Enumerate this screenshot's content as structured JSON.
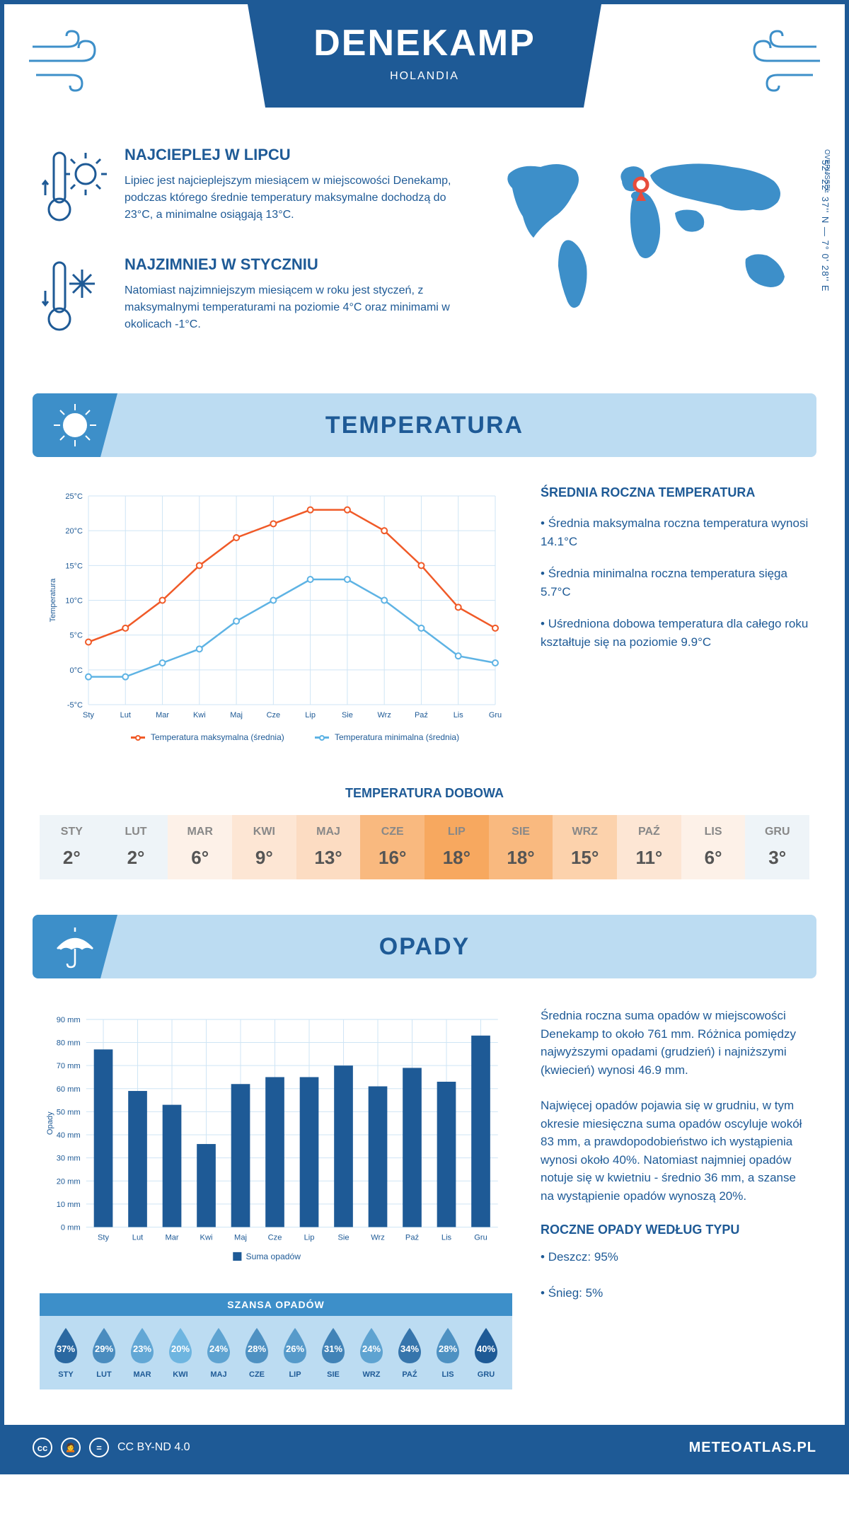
{
  "header": {
    "city": "DENEKAMP",
    "country": "HOLANDIA"
  },
  "coords": "52° 22' 37'' N — 7° 0' 28'' E",
  "region": "OVERIJSSEL",
  "facts": {
    "hot": {
      "title": "NAJCIEPLEJ W LIPCU",
      "body": "Lipiec jest najcieplejszym miesiącem w miejscowości Denekamp, podczas którego średnie temperatury maksymalne dochodzą do 23°C, a minimalne osiągają 13°C."
    },
    "cold": {
      "title": "NAJZIMNIEJ W STYCZNIU",
      "body": "Natomiast najzimniejszym miesiącem w roku jest styczeń, z maksymalnymi temperaturami na poziomie 4°C oraz minimami w okolicach -1°C."
    }
  },
  "sections": {
    "temperature": "TEMPERATURA",
    "precipitation": "OPADY"
  },
  "temp_chart": {
    "type": "line",
    "y_axis_label": "Temperatura",
    "months": [
      "Sty",
      "Lut",
      "Mar",
      "Kwi",
      "Maj",
      "Cze",
      "Lip",
      "Sie",
      "Wrz",
      "Paź",
      "Lis",
      "Gru"
    ],
    "ylim": [
      -5,
      25
    ],
    "ytick_step": 5,
    "ytick_labels": [
      "-5°C",
      "0°C",
      "5°C",
      "10°C",
      "15°C",
      "20°C",
      "25°C"
    ],
    "series": {
      "max": {
        "label": "Temperatura maksymalna (średnia)",
        "color": "#f05a28",
        "values": [
          4,
          6,
          10,
          15,
          19,
          21,
          23,
          23,
          20,
          15,
          9,
          6
        ]
      },
      "min": {
        "label": "Temperatura minimalna (średnia)",
        "color": "#5eb3e4",
        "values": [
          -1,
          -1,
          1,
          3,
          7,
          10,
          13,
          13,
          10,
          6,
          2,
          1
        ]
      }
    },
    "grid_color": "#cfe5f5",
    "background": "#ffffff"
  },
  "temp_summary": {
    "title": "ŚREDNIA ROCZNA TEMPERATURA",
    "bullets": [
      "Średnia maksymalna roczna temperatura wynosi 14.1°C",
      "Średnia minimalna roczna temperatura sięga 5.7°C",
      "Uśredniona dobowa temperatura dla całego roku kształtuje się na poziomie 9.9°C"
    ]
  },
  "daily": {
    "title": "TEMPERATURA DOBOWA",
    "months": [
      "STY",
      "LUT",
      "MAR",
      "KWI",
      "MAJ",
      "CZE",
      "LIP",
      "SIE",
      "WRZ",
      "PAŹ",
      "LIS",
      "GRU"
    ],
    "values": [
      "2°",
      "2°",
      "6°",
      "9°",
      "13°",
      "16°",
      "18°",
      "18°",
      "15°",
      "11°",
      "6°",
      "3°"
    ],
    "bg_colors": [
      "#eef4f8",
      "#eef4f8",
      "#fdf1e8",
      "#fde6d4",
      "#fcdcc2",
      "#f9b97f",
      "#f7a85f",
      "#f9b97f",
      "#fcd2ac",
      "#fde6d4",
      "#fdf1e8",
      "#eef4f8"
    ]
  },
  "precip_chart": {
    "type": "bar",
    "y_axis_label": "Opady",
    "months": [
      "Sty",
      "Lut",
      "Mar",
      "Kwi",
      "Maj",
      "Cze",
      "Lip",
      "Sie",
      "Wrz",
      "Paź",
      "Lis",
      "Gru"
    ],
    "ylim": [
      0,
      90
    ],
    "ytick_step": 10,
    "ytick_labels": [
      "0 mm",
      "10 mm",
      "20 mm",
      "30 mm",
      "40 mm",
      "50 mm",
      "60 mm",
      "70 mm",
      "80 mm",
      "90 mm"
    ],
    "values": [
      77,
      59,
      53,
      36,
      62,
      65,
      65,
      70,
      61,
      69,
      63,
      83
    ],
    "bar_color": "#1e5a96",
    "legend": "Suma opadów",
    "grid_color": "#cfe5f5"
  },
  "precip_text": {
    "p1": "Średnia roczna suma opadów w miejscowości Denekamp to około 761 mm. Różnica pomiędzy najwyższymi opadami (grudzień) i najniższymi (kwiecień) wynosi 46.9 mm.",
    "p2": "Najwięcej opadów pojawia się w grudniu, w tym okresie miesięczna suma opadów oscyluje wokół 83 mm, a prawdopodobieństwo ich wystąpienia wynosi około 40%. Natomiast najmniej opadów notuje się w kwietniu - średnio 36 mm, a szanse na wystąpienie opadów wynoszą 20%.",
    "type_title": "ROCZNE OPADY WEDŁUG TYPU",
    "type_bullets": [
      "Deszcz: 95%",
      "Śnieg: 5%"
    ]
  },
  "chance": {
    "title": "SZANSA OPADÓW",
    "months": [
      "STY",
      "LUT",
      "MAR",
      "KWI",
      "MAJ",
      "CZE",
      "LIP",
      "SIE",
      "WRZ",
      "PAŹ",
      "LIS",
      "GRU"
    ],
    "values": [
      37,
      29,
      23,
      20,
      24,
      28,
      26,
      31,
      24,
      34,
      28,
      40
    ],
    "min_color": "#6eb5e0",
    "max_color": "#1e5a96"
  },
  "footer": {
    "license": "CC BY-ND 4.0",
    "site": "METEOATLAS.PL"
  }
}
